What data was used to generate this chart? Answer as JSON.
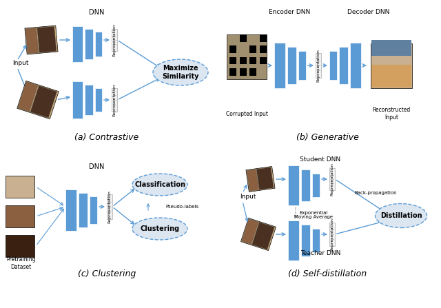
{
  "bg_color": "#ffffff",
  "blue": "#5b9bd5",
  "light_blue": "#dce6f1",
  "arrow_color": "#5b9bd5",
  "subfig_labels": [
    "(a) Contrastive",
    "(b) Generative",
    "(c) Clustering",
    "(d) Self-distillation"
  ]
}
